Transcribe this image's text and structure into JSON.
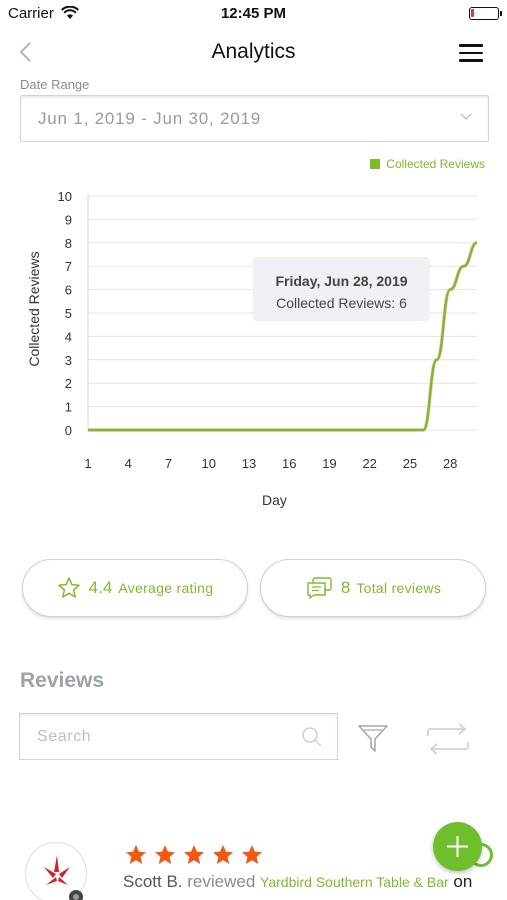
{
  "status_bar": {
    "carrier": "Carrier",
    "time": "12:45 PM",
    "battery_color": "#e23a2e"
  },
  "nav": {
    "title": "Analytics",
    "back_icon": "chevron-left-icon",
    "menu_icon": "hamburger-menu-icon"
  },
  "date_range": {
    "label": "Date Range",
    "value": "Jun 1, 2019 - Jun 30, 2019"
  },
  "legend": {
    "label": "Collected Reviews",
    "color": "#7dbb2c"
  },
  "chart_data": {
    "type": "line",
    "ylabel": "Collected Reviews",
    "xlabel": "Day",
    "ylim": [
      0,
      10
    ],
    "yticks": [
      "10",
      "9",
      "8",
      "7",
      "6",
      "5",
      "4",
      "3",
      "2",
      "1",
      "0"
    ],
    "xlim": [
      1,
      30
    ],
    "xticks": [
      "1",
      "4",
      "7",
      "10",
      "13",
      "16",
      "19",
      "22",
      "25",
      "28"
    ],
    "grid": true,
    "series": [
      {
        "name": "Collected Reviews",
        "color": "#7dbb2c",
        "x": [
          1,
          4,
          7,
          10,
          13,
          16,
          19,
          22,
          25,
          26,
          27,
          28,
          29,
          30
        ],
        "values": [
          0,
          0,
          0,
          0,
          0,
          0,
          0,
          0,
          0,
          0,
          3,
          6,
          7,
          8
        ]
      }
    ],
    "tooltip": {
      "title": "Friday, Jun 28, 2019",
      "text": "Collected Reviews: 6"
    }
  },
  "stats": {
    "rating_value": "4.4",
    "rating_label": "Average rating",
    "total_value": "8",
    "total_label": "Total reviews",
    "accent": "#7dbb2c"
  },
  "reviews": {
    "title": "Reviews",
    "search_placeholder": "Search",
    "item": {
      "reviewer": "Scott B.",
      "reviewed_word": "reviewed",
      "business": "Yardbird Southern Table & Bar",
      "on_word": "on",
      "rating": 5,
      "star_color": "#ee5a14",
      "source_icon": "yelp-logo-icon"
    }
  },
  "fab": {
    "icon": "plus-icon",
    "color": "#6fbf2c"
  }
}
